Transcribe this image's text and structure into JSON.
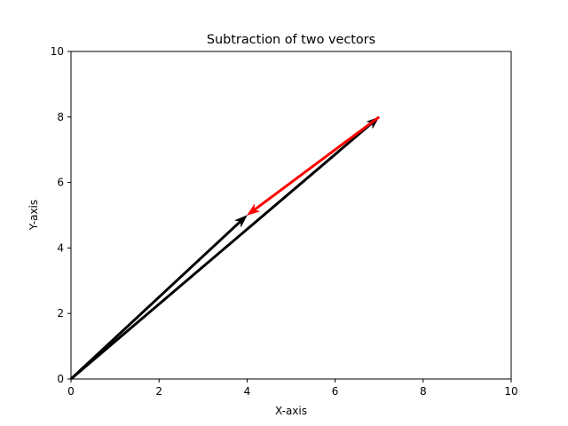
{
  "chart_data": {
    "type": "vector",
    "title": "Subtraction of two vectors",
    "xlabel": "X-axis",
    "ylabel": "Y-axis",
    "xlim": [
      0,
      10
    ],
    "ylim": [
      0,
      10
    ],
    "xticks": [
      "0",
      "2",
      "4",
      "6",
      "8",
      "10"
    ],
    "yticks": [
      "0",
      "2",
      "4",
      "6",
      "8",
      "10"
    ],
    "grid": false,
    "vectors": [
      {
        "start": [
          0,
          0
        ],
        "end": [
          4,
          5
        ],
        "color": "#000000"
      },
      {
        "start": [
          0,
          0
        ],
        "end": [
          7,
          8
        ],
        "color": "#000000"
      },
      {
        "start": [
          7,
          8
        ],
        "end": [
          4,
          5
        ],
        "color": "#ff0000"
      }
    ]
  }
}
